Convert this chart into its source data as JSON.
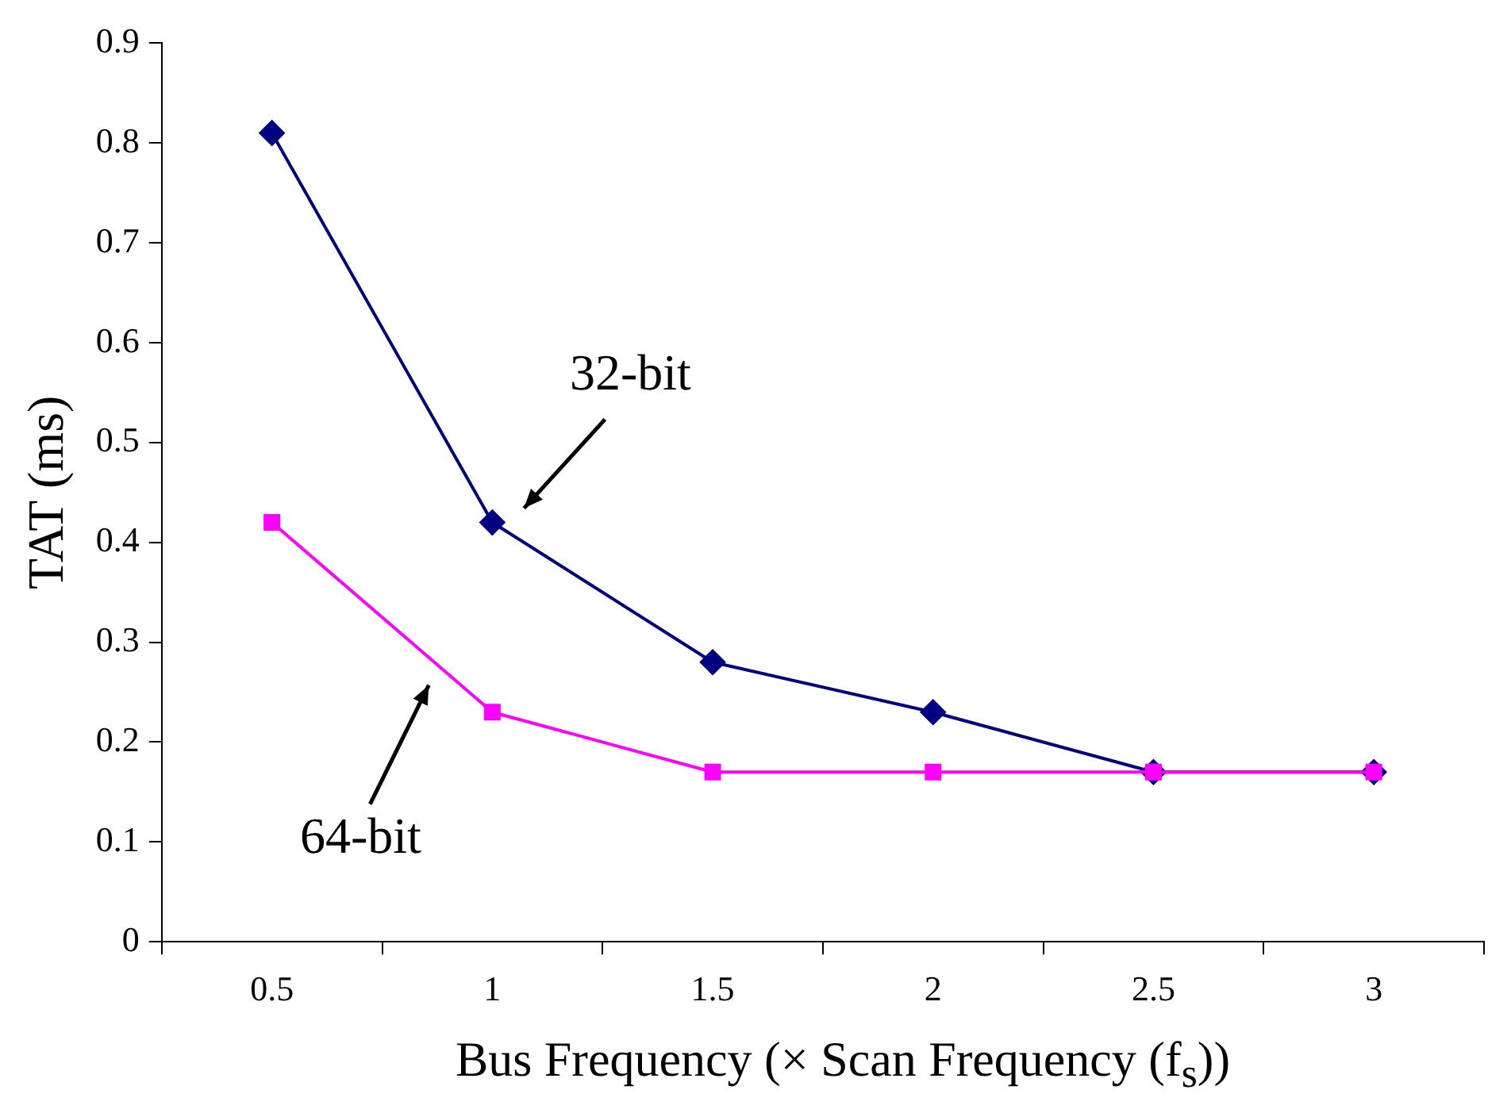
{
  "chart_data": {
    "type": "line",
    "xlabel": "Bus Frequency (× Scan Frequency (f$_{s}$))",
    "ylabel": "TAT (ms)",
    "categories": [
      "0.5",
      "1",
      "1.5",
      "2",
      "2.5",
      "3"
    ],
    "series": [
      {
        "name": "32-bit",
        "color": "#000080",
        "marker": "diamond",
        "values": [
          0.81,
          0.42,
          0.28,
          0.23,
          0.17,
          0.17
        ]
      },
      {
        "name": "64-bit",
        "color": "#ff00ff",
        "marker": "square",
        "values": [
          0.42,
          0.23,
          0.17,
          0.17,
          0.17,
          0.17
        ]
      }
    ],
    "ylim": [
      0,
      0.9
    ],
    "yticks": [
      0,
      0.1,
      0.2,
      0.3,
      0.4,
      0.5,
      0.6,
      0.7,
      0.8,
      0.9
    ],
    "grid": false,
    "legend": false,
    "line_style": "solid"
  }
}
